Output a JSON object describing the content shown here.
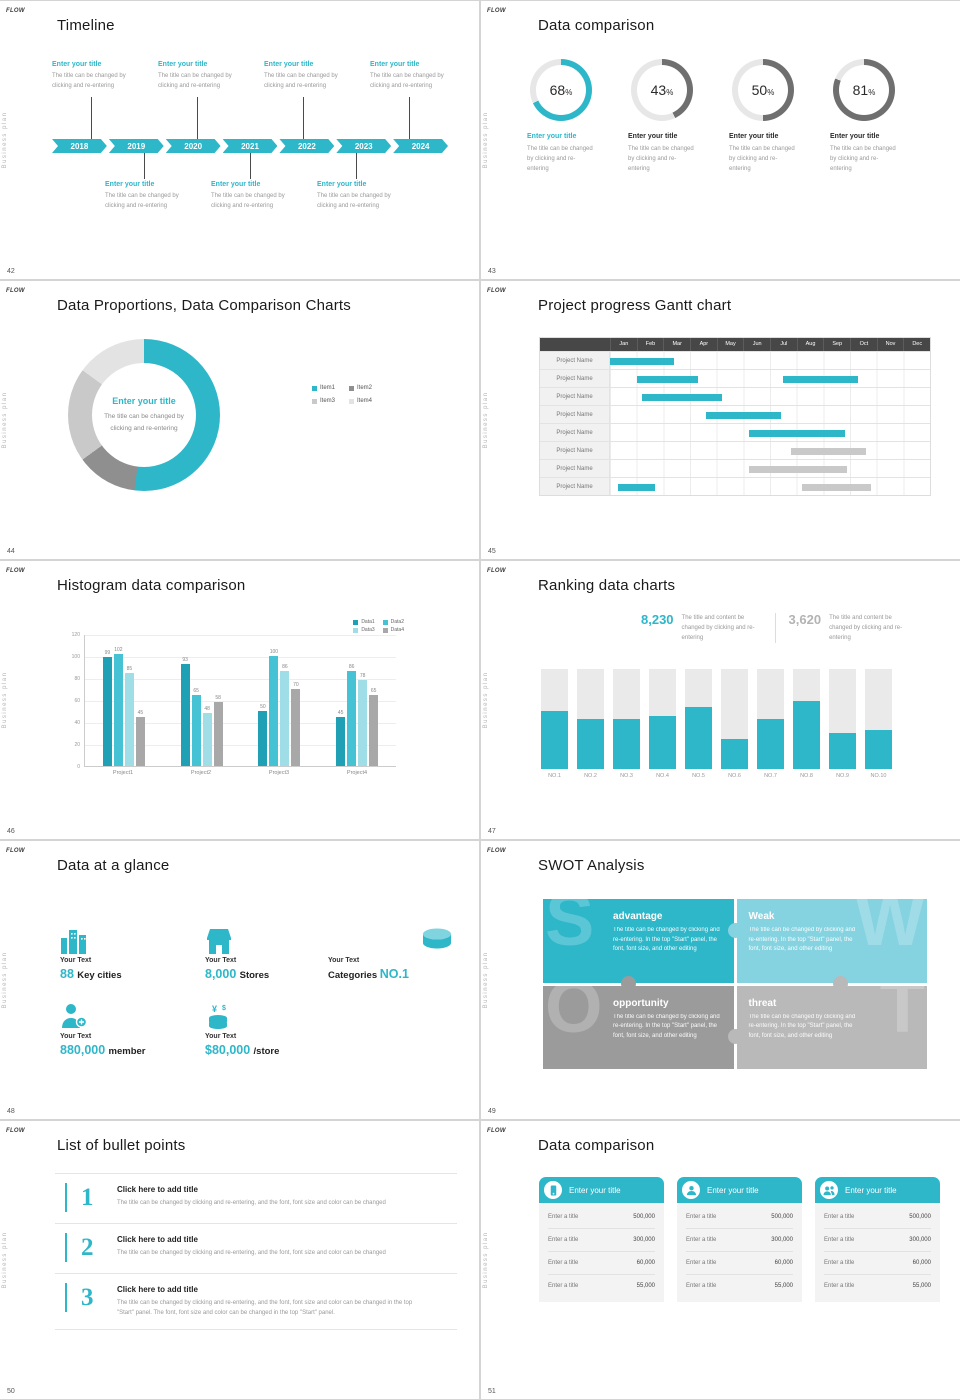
{
  "global": {
    "logo": "FLOW",
    "sidebar_label": "Business plan"
  },
  "slides": {
    "timeline": {
      "page": "42",
      "title": "Timeline",
      "years": [
        "2018",
        "2019",
        "2020",
        "2021",
        "2022",
        "2023",
        "2024"
      ],
      "entry_title": "Enter your title",
      "entry_body": "The title can be changed by clicking and re-entering"
    },
    "donuts": {
      "page": "43",
      "title": "Data comparison",
      "entry_title": "Enter your title",
      "entry_body": "The title can be changed by clicking and re-entering",
      "items": [
        {
          "percent": 68,
          "accent": true
        },
        {
          "percent": 43,
          "accent": false
        },
        {
          "percent": 50,
          "accent": false
        },
        {
          "percent": 81,
          "accent": false
        }
      ]
    },
    "pie": {
      "page": "44",
      "title": "Data Proportions, Data Comparison Charts",
      "center_title": "Enter your title",
      "center_body": "The title can be changed by clicking and re-entering",
      "segments": [
        {
          "label": "Item1",
          "value": 52,
          "color": "#2eb6c9"
        },
        {
          "label": "Item2",
          "value": 13,
          "color": "#8f8f8f"
        },
        {
          "label": "Item3",
          "value": 20,
          "color": "#c9c9c9"
        },
        {
          "label": "Item4",
          "value": 15,
          "color": "#e3e3e3"
        }
      ]
    },
    "gantt": {
      "page": "45",
      "title": "Project progress Gantt chart",
      "months": [
        "Jan",
        "Feb",
        "Mar",
        "Apr",
        "May",
        "Jun",
        "Jul",
        "Aug",
        "Sep",
        "Oct",
        "Nov",
        "Dec"
      ],
      "row_label": "Project Name",
      "rows": [
        {
          "bars": [
            {
              "start": 0,
              "end": 2.4,
              "color": "#2eb6c9"
            }
          ]
        },
        {
          "bars": [
            {
              "start": 1,
              "end": 3.3,
              "color": "#2eb6c9"
            },
            {
              "start": 6.5,
              "end": 9.3,
              "color": "#2eb6c9"
            }
          ]
        },
        {
          "bars": [
            {
              "start": 1.2,
              "end": 4.2,
              "color": "#2eb6c9"
            }
          ]
        },
        {
          "bars": [
            {
              "start": 3.6,
              "end": 6.4,
              "color": "#2eb6c9"
            }
          ]
        },
        {
          "bars": [
            {
              "start": 5.2,
              "end": 8.8,
              "color": "#2eb6c9"
            }
          ]
        },
        {
          "bars": [
            {
              "start": 6.8,
              "end": 9.6,
              "color": "#c9c9c9"
            }
          ]
        },
        {
          "bars": [
            {
              "start": 5.2,
              "end": 8.9,
              "color": "#c9c9c9"
            }
          ]
        },
        {
          "bars": [
            {
              "start": 0.3,
              "end": 1.7,
              "color": "#2eb6c9"
            },
            {
              "start": 7.2,
              "end": 9.8,
              "color": "#c9c9c9"
            }
          ]
        }
      ]
    },
    "histogram": {
      "page": "46",
      "title": "Histogram data comparison",
      "categories": [
        "Project1",
        "Project2",
        "Project3",
        "Project4"
      ],
      "yticks": [
        0,
        20,
        40,
        60,
        80,
        100,
        120
      ],
      "ymax": 120,
      "series": [
        {
          "name": "Data1",
          "color": "#1fa0b5",
          "values": [
            99,
            93,
            50,
            45
          ]
        },
        {
          "name": "Data2",
          "color": "#45c2d4",
          "values": [
            102,
            65,
            100,
            86
          ]
        },
        {
          "name": "Data3",
          "color": "#9fdde7",
          "values": [
            85,
            48,
            86,
            78
          ]
        },
        {
          "name": "Data4",
          "color": "#a8a8a8",
          "values": [
            45,
            58,
            70,
            65
          ]
        }
      ]
    },
    "ranking": {
      "page": "47",
      "title": "Ranking data charts",
      "stats": [
        {
          "value": "8,230",
          "accent": true,
          "body": "The title and content be changed by clicking and re-entering"
        },
        {
          "value": "3,620",
          "accent": false,
          "body": "The title and content be changed by clicking and re-entering"
        }
      ],
      "labels": [
        "NO.1",
        "NO.2",
        "NO.3",
        "NO.4",
        "NO.5",
        "NO.6",
        "NO.7",
        "NO.8",
        "NO.9",
        "NO.10"
      ],
      "values": [
        58,
        50,
        50,
        53,
        62,
        30,
        50,
        68,
        36,
        39
      ],
      "max": 100
    },
    "glance": {
      "page": "48",
      "title": "Data at a glance",
      "items": [
        {
          "icon": "city-icon",
          "label": "Your Text",
          "pre": "",
          "num": "88",
          "post": "Key cities"
        },
        {
          "icon": "store-icon",
          "label": "Your Text",
          "pre": "",
          "num": "8,000",
          "post": "Stores"
        },
        {
          "icon": "categories-icon",
          "label": "Your Text",
          "pre": "Categories",
          "num": "NO.1",
          "post": ""
        },
        {
          "icon": "member-icon",
          "label": "Your Text",
          "pre": "",
          "num": "880,000",
          "post": "member"
        },
        {
          "icon": "money-icon",
          "label": "Your Text",
          "pre": "",
          "num": "$80,000",
          "post": "/store"
        }
      ]
    },
    "swot": {
      "page": "49",
      "title": "SWOT Analysis",
      "body": "The title can be changed by clicking and re-entering. In the top \"Start\" panel, the font, font size, and other editing",
      "cells": [
        {
          "letter": "S",
          "heading": "advantage",
          "color": "#2eb6c9",
          "side": "left"
        },
        {
          "letter": "W",
          "heading": "Weak",
          "color": "#85d3e0",
          "side": "right"
        },
        {
          "letter": "O",
          "heading": "opportunity",
          "color": "#9b9b9b",
          "side": "left"
        },
        {
          "letter": "T",
          "heading": "threat",
          "color": "#b9b9b9",
          "side": "right"
        }
      ]
    },
    "bullets": {
      "page": "50",
      "title": "List of bullet points",
      "items": [
        {
          "num": "1",
          "heading": "Click here to add title",
          "body": "The title can be changed by clicking and re-entering, and the font, font size and color can be changed"
        },
        {
          "num": "2",
          "heading": "Click here to add title",
          "body": "The title can be changed by clicking and re-entering, and the font, font size and color can be changed"
        },
        {
          "num": "3",
          "heading": "Click here to add title",
          "body": "The title can be changed by clicking and re-entering, and the font, font size and color can be changed in the top \"Start\" panel. The font, font size and color can be changed in the top \"Start\" panel."
        }
      ]
    },
    "compare": {
      "page": "51",
      "title": "Data comparison",
      "row_label": "Enter a title",
      "values": [
        "500,000",
        "300,000",
        "60,000",
        "55,000"
      ],
      "cards": [
        {
          "icon": "device-icon",
          "heading": "Enter your title"
        },
        {
          "icon": "user-icon",
          "heading": "Enter your title"
        },
        {
          "icon": "group-icon",
          "heading": "Enter your title"
        }
      ]
    }
  }
}
